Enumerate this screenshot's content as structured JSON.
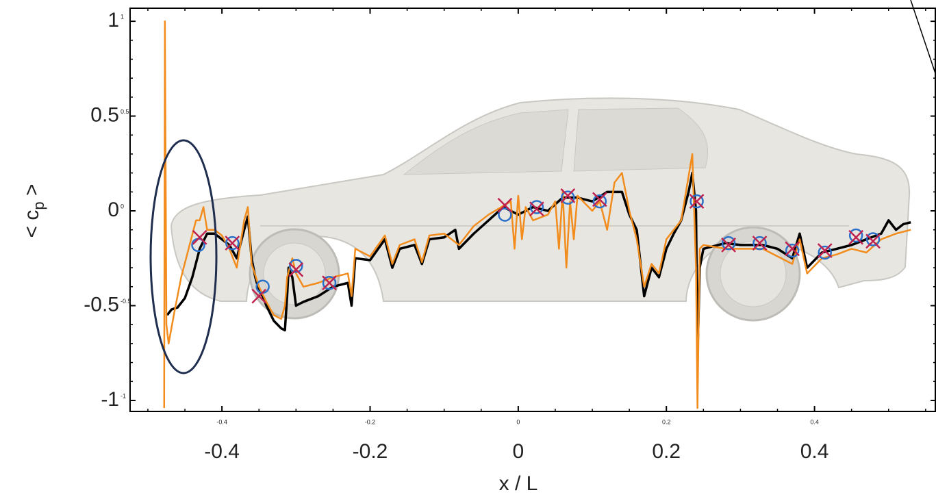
{
  "chart_data": {
    "type": "line",
    "xlabel": "x / L",
    "ylabel": "< c",
    "ylabel_sub": "p",
    "ylabel_end": " >",
    "xlim": [
      -0.524,
      0.564
    ],
    "ylim": [
      -1.058,
      1.069
    ],
    "xticks": [
      -0.4,
      -0.2,
      0,
      0.2,
      0.4
    ],
    "yticks": [
      -1,
      -0.5,
      0,
      0.5,
      1
    ],
    "xminorticks": [
      -0.5,
      -0.45,
      -0.35,
      -0.3,
      -0.25,
      -0.15,
      -0.1,
      -0.05,
      0.05,
      0.1,
      0.15,
      0.25,
      0.3,
      0.35,
      0.45,
      0.5,
      0.55
    ],
    "yminorticks": [
      -0.9,
      -0.8,
      -0.7,
      -0.6,
      -0.4,
      -0.3,
      -0.2,
      -0.1,
      0.1,
      0.2,
      0.3,
      0.4,
      0.6,
      0.7,
      0.8,
      0.9
    ],
    "series": [
      {
        "color": "#000000",
        "marker": "none",
        "x": [
          -0.474,
          -0.468,
          -0.46,
          -0.45,
          -0.44,
          -0.43,
          -0.42,
          -0.41,
          -0.4,
          -0.39,
          -0.38,
          -0.37,
          -0.365,
          -0.36,
          -0.355,
          -0.35,
          -0.345,
          -0.34,
          -0.33,
          -0.32,
          -0.315,
          -0.312,
          -0.31,
          -0.305,
          -0.3,
          -0.29,
          -0.27,
          -0.25,
          -0.23,
          -0.225,
          -0.22,
          -0.2,
          -0.18,
          -0.17,
          -0.16,
          -0.14,
          -0.13,
          -0.12,
          -0.1,
          -0.085,
          -0.08,
          -0.06,
          -0.04,
          -0.02,
          0,
          0.02,
          0.04,
          0.06,
          0.08,
          0.1,
          0.12,
          0.14,
          0.15,
          0.16,
          0.17,
          0.18,
          0.19,
          0.2,
          0.21,
          0.22,
          0.23,
          0.235,
          0.24,
          0.242,
          0.245,
          0.25,
          0.28,
          0.3,
          0.33,
          0.35,
          0.37,
          0.38,
          0.39,
          0.41,
          0.43,
          0.45,
          0.47,
          0.49,
          0.5,
          0.51,
          0.52,
          0.53
        ],
        "values": [
          -0.55,
          -0.52,
          -0.51,
          -0.46,
          -0.35,
          -0.2,
          -0.12,
          -0.12,
          -0.15,
          -0.18,
          -0.25,
          -0.1,
          -0.03,
          -0.25,
          -0.35,
          -0.42,
          -0.45,
          -0.5,
          -0.58,
          -0.62,
          -0.63,
          -0.45,
          -0.3,
          -0.35,
          -0.5,
          -0.48,
          -0.45,
          -0.4,
          -0.38,
          -0.5,
          -0.25,
          -0.26,
          -0.15,
          -0.3,
          -0.2,
          -0.18,
          -0.28,
          -0.15,
          -0.14,
          -0.1,
          -0.2,
          -0.12,
          -0.05,
          0.02,
          -0.02,
          0.02,
          0.0,
          0.07,
          0.07,
          0.05,
          0.1,
          0.1,
          -0.02,
          -0.1,
          -0.45,
          -0.3,
          -0.35,
          -0.2,
          -0.12,
          -0.05,
          0.1,
          0.2,
          0.0,
          -0.78,
          -0.3,
          -0.2,
          -0.17,
          -0.18,
          -0.18,
          -0.2,
          -0.25,
          -0.12,
          -0.3,
          -0.22,
          -0.2,
          -0.18,
          -0.15,
          -0.12,
          -0.05,
          -0.1,
          -0.07,
          -0.06
        ]
      },
      {
        "color": "#f28c1c",
        "marker": "none",
        "x": [
          -0.478,
          -0.477,
          -0.475,
          -0.472,
          -0.465,
          -0.455,
          -0.445,
          -0.435,
          -0.43,
          -0.425,
          -0.42,
          -0.41,
          -0.4,
          -0.39,
          -0.38,
          -0.37,
          -0.365,
          -0.36,
          -0.35,
          -0.34,
          -0.33,
          -0.32,
          -0.315,
          -0.312,
          -0.305,
          -0.3,
          -0.29,
          -0.27,
          -0.25,
          -0.23,
          -0.225,
          -0.22,
          -0.2,
          -0.18,
          -0.17,
          -0.16,
          -0.14,
          -0.13,
          -0.12,
          -0.1,
          -0.08,
          -0.06,
          -0.04,
          -0.01,
          -0.005,
          0,
          0.005,
          0.01,
          0.02,
          0.04,
          0.05,
          0.055,
          0.06,
          0.065,
          0.07,
          0.075,
          0.08,
          0.1,
          0.11,
          0.12,
          0.13,
          0.14,
          0.15,
          0.16,
          0.17,
          0.18,
          0.19,
          0.2,
          0.22,
          0.235,
          0.24,
          0.242,
          0.245,
          0.25,
          0.28,
          0.33,
          0.37,
          0.38,
          0.39,
          0.41,
          0.43,
          0.45,
          0.47,
          0.49,
          0.51,
          0.53
        ],
        "values": [
          -1.04,
          1.0,
          -0.6,
          -0.7,
          -0.55,
          -0.35,
          -0.2,
          -0.05,
          -0.05,
          0.02,
          -0.1,
          -0.1,
          -0.13,
          -0.2,
          -0.3,
          -0.05,
          0.02,
          -0.28,
          -0.4,
          -0.48,
          -0.55,
          -0.57,
          -0.5,
          -0.35,
          -0.25,
          -0.33,
          -0.4,
          -0.38,
          -0.35,
          -0.33,
          -0.45,
          -0.2,
          -0.24,
          -0.13,
          -0.28,
          -0.18,
          -0.15,
          -0.27,
          -0.13,
          -0.12,
          -0.18,
          -0.08,
          -0.02,
          0.05,
          -0.2,
          0.08,
          -0.15,
          0.02,
          -0.05,
          -0.02,
          0.05,
          -0.2,
          0.1,
          -0.3,
          0.05,
          -0.15,
          0.08,
          0.0,
          0.05,
          -0.1,
          0.15,
          0.2,
          0.0,
          -0.15,
          -0.4,
          -0.28,
          -0.33,
          -0.15,
          -0.05,
          0.3,
          -0.3,
          -1.04,
          -0.2,
          -0.18,
          -0.2,
          -0.2,
          -0.28,
          -0.15,
          -0.33,
          -0.25,
          -0.23,
          -0.2,
          -0.22,
          -0.15,
          -0.12,
          -0.1
        ]
      },
      {
        "color": "#2a6fc9",
        "marker": "circle",
        "x": [
          -0.432,
          -0.386,
          -0.345,
          -0.3,
          -0.255,
          -0.018,
          0.025,
          0.067,
          0.11,
          0.241,
          0.284,
          0.326,
          0.37,
          0.414,
          0.456,
          0.479
        ],
        "values": [
          -0.18,
          -0.17,
          -0.4,
          -0.29,
          -0.38,
          -0.02,
          0.02,
          0.07,
          0.05,
          0.05,
          -0.17,
          -0.17,
          -0.21,
          -0.22,
          -0.13,
          -0.15
        ]
      },
      {
        "color": "#c0224f",
        "marker": "cross",
        "x": [
          -0.43,
          -0.386,
          -0.35,
          -0.3,
          -0.255,
          -0.018,
          0.025,
          0.067,
          0.11,
          0.241,
          0.284,
          0.326,
          0.37,
          0.414,
          0.456,
          0.479
        ],
        "values": [
          -0.14,
          -0.17,
          -0.45,
          -0.31,
          -0.38,
          0.03,
          0.01,
          0.08,
          0.06,
          0.05,
          -0.18,
          -0.17,
          -0.2,
          -0.21,
          -0.14,
          -0.16
        ]
      }
    ]
  }
}
